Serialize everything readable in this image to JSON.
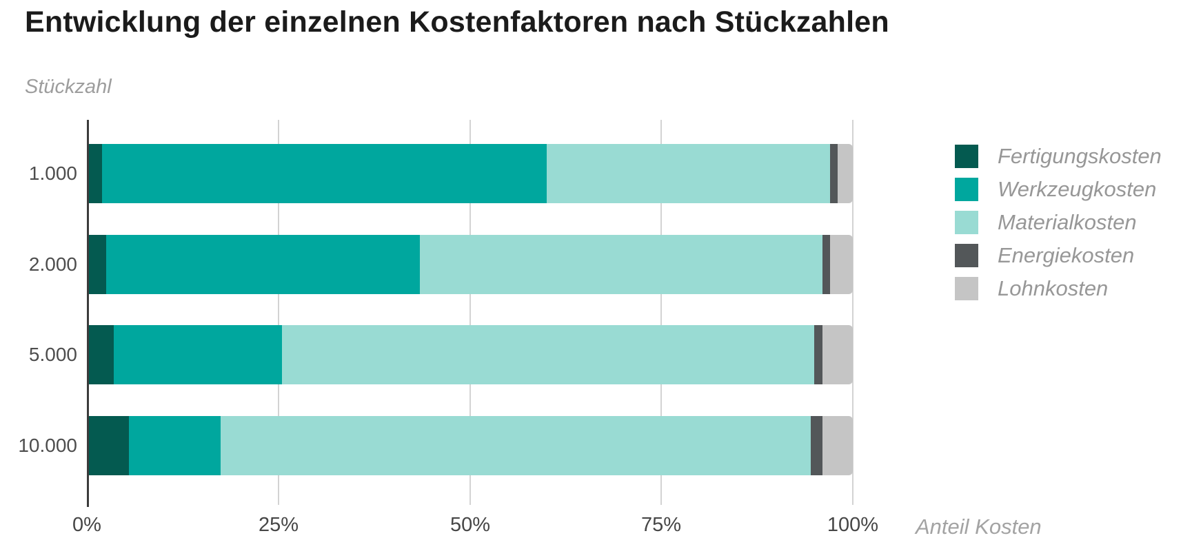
{
  "title": "Entwicklung der einzelnen Kostenfaktoren nach Stückzahlen",
  "y_axis_title": "Stückzahl",
  "x_axis_title": "Anteil Kosten",
  "chart_data": {
    "type": "bar",
    "orientation": "horizontal",
    "stacked": true,
    "title": "Entwicklung der einzelnen Kostenfaktoren nach Stückzahlen",
    "xlabel": "Anteil Kosten",
    "ylabel": "Stückzahl",
    "categories": [
      "1.000",
      "2.000",
      "5.000",
      "10.000"
    ],
    "series": [
      {
        "name": "Fertigungskosten",
        "color": "#045a50",
        "values": [
          2,
          2.5,
          3.5,
          5.5
        ]
      },
      {
        "name": "Werkzeugkosten",
        "color": "#00a79e",
        "values": [
          58,
          41,
          22,
          12
        ]
      },
      {
        "name": "Materialkosten",
        "color": "#99dbd3",
        "values": [
          37,
          52.5,
          69.5,
          77
        ]
      },
      {
        "name": "Energiekosten",
        "color": "#535759",
        "values": [
          1,
          1,
          1,
          1.5
        ]
      },
      {
        "name": "Lohnkosten",
        "color": "#c5c5c5",
        "values": [
          2,
          3,
          4,
          4
        ]
      }
    ],
    "xlim": [
      0,
      100
    ],
    "x_tick_labels": [
      "0%",
      "25%",
      "50%",
      "75%",
      "100%"
    ],
    "x_tick_positions": [
      0,
      25,
      50,
      75,
      100
    ],
    "grid": true,
    "legend_position": "right",
    "axis_line_color": "#3b3b3b",
    "gridline_color": "#d3d3d3"
  }
}
